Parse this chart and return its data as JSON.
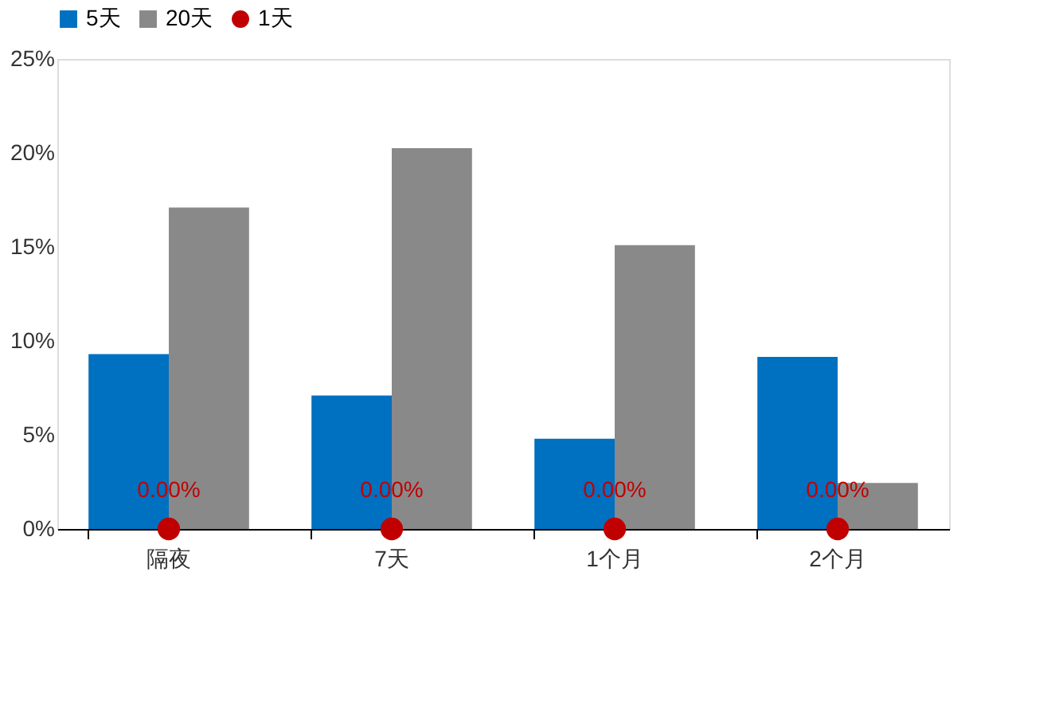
{
  "chart_data": {
    "type": "bar",
    "categories": [
      "隔夜",
      "7天",
      "1个月",
      "2个月"
    ],
    "series": [
      {
        "name": "5天",
        "color": "#0070c0",
        "values": [
          9.3,
          7.1,
          4.8,
          9.15
        ]
      },
      {
        "name": "20天",
        "color": "#898989",
        "values": [
          17.1,
          20.25,
          15.1,
          2.45
        ]
      },
      {
        "name": "1天",
        "type": "scatter",
        "color": "#c00000",
        "values": [
          0,
          0,
          0,
          0
        ],
        "value_labels": [
          "0.00%",
          "0.00%",
          "0.00%",
          "0.00%"
        ]
      }
    ],
    "ylim": [
      0,
      25
    ],
    "yticks": [
      {
        "value": 0,
        "label": "0%"
      },
      {
        "value": 5,
        "label": "5%"
      },
      {
        "value": 10,
        "label": "10%"
      },
      {
        "value": 15,
        "label": "15%"
      },
      {
        "value": 20,
        "label": "20%"
      },
      {
        "value": 25,
        "label": "25%"
      }
    ],
    "grid": false,
    "legend": "top",
    "marker": "circle"
  }
}
